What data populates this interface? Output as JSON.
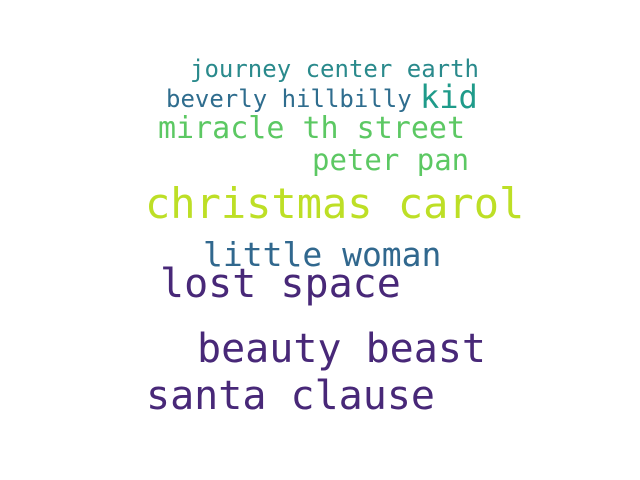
{
  "words": [
    {
      "text": "journey center earth",
      "color": "#2a8a8c"
    },
    {
      "text": "beverly hillbilly",
      "color": "#2f6d8e"
    },
    {
      "text": "kid",
      "color": "#1f9b8a"
    },
    {
      "text": "miracle th street",
      "color": "#5cc863"
    },
    {
      "text": "peter pan",
      "color": "#5cc863"
    },
    {
      "text": "christmas carol",
      "color": "#bddf26"
    },
    {
      "text": "little woman",
      "color": "#31688e"
    },
    {
      "text": "lost space",
      "color": "#482878"
    },
    {
      "text": "beauty beast",
      "color": "#482878"
    },
    {
      "text": "santa clause",
      "color": "#482878"
    }
  ]
}
